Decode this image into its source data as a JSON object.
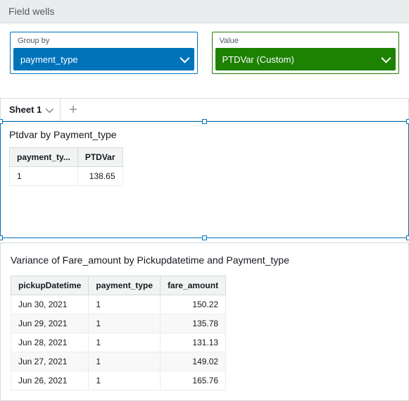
{
  "fieldWells": {
    "header": "Field wells",
    "groupBy": {
      "label": "Group by",
      "pill": "payment_type"
    },
    "value": {
      "label": "Value",
      "pill": "PTDVar (Custom)"
    }
  },
  "sheets": {
    "activeTab": "Sheet 1"
  },
  "viz1": {
    "title": "Ptdvar by Payment_type",
    "cols": [
      "payment_ty...",
      "PTDVar"
    ],
    "rows": [
      {
        "c0": "1",
        "c1": "138.65"
      }
    ]
  },
  "viz2": {
    "title": "Variance of Fare_amount by Pickupdatetime and Payment_type",
    "cols": [
      "pickupDatetime",
      "payment_type",
      "fare_amount"
    ],
    "rows": [
      {
        "c0": "Jun 30, 2021",
        "c1": "1",
        "c2": "150.22"
      },
      {
        "c0": "Jun 29, 2021",
        "c1": "1",
        "c2": "135.78"
      },
      {
        "c0": "Jun 28, 2021",
        "c1": "1",
        "c2": "131.13"
      },
      {
        "c0": "Jun 27, 2021",
        "c1": "1",
        "c2": "149.02"
      },
      {
        "c0": "Jun 26, 2021",
        "c1": "1",
        "c2": "165.76"
      }
    ]
  }
}
